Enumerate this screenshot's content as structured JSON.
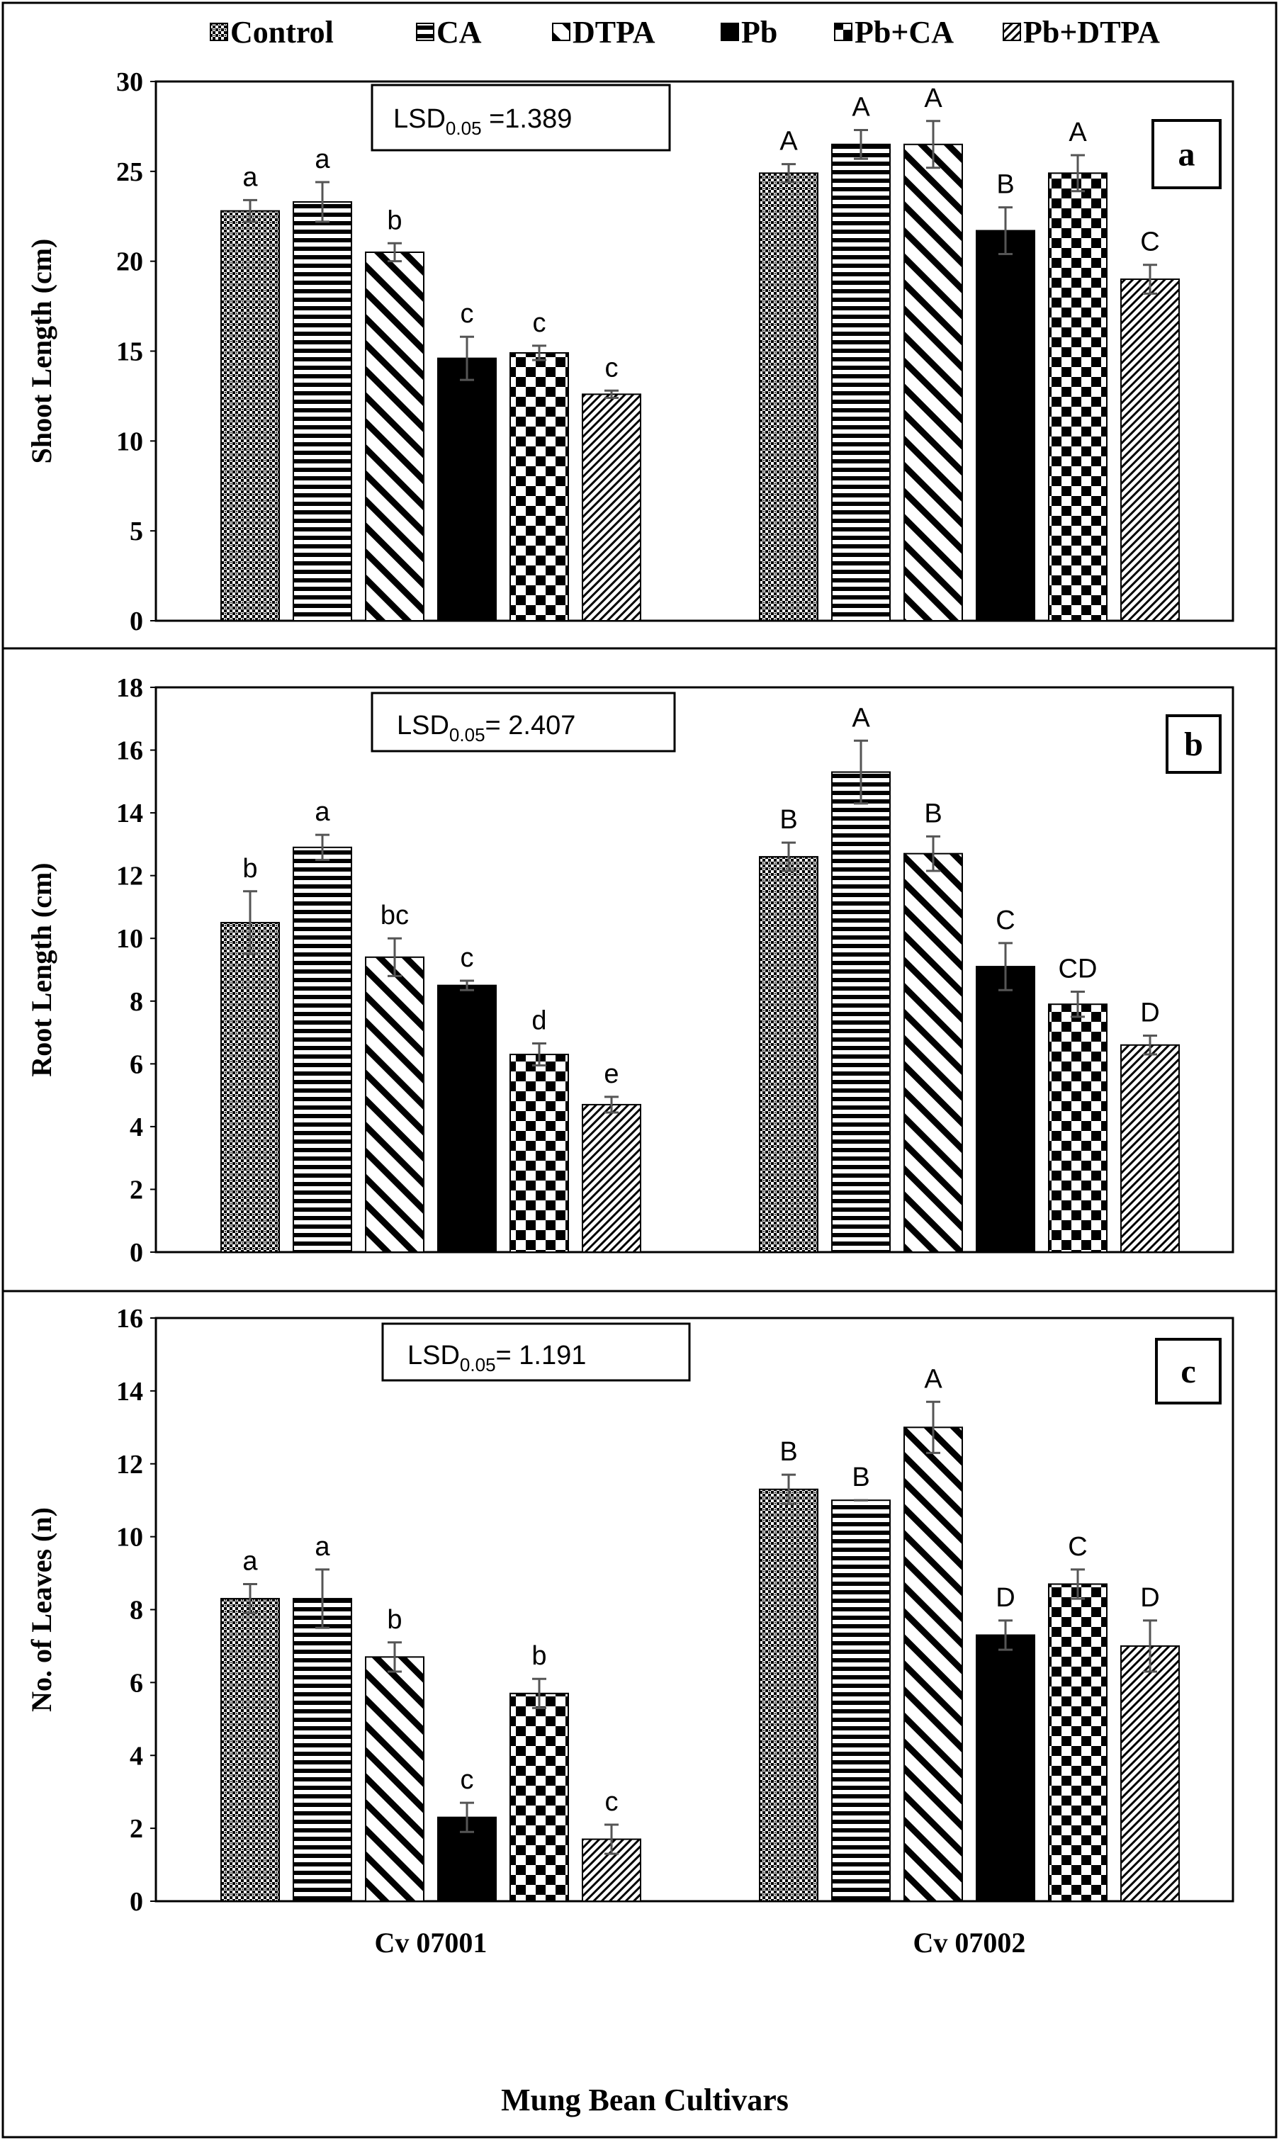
{
  "legend": [
    "Control",
    "CA",
    "DTPA",
    "Pb",
    "Pb+CA",
    "Pb+DTPA"
  ],
  "xlabel": "Mung Bean Cultivars",
  "categories": [
    "Cv 07001",
    "Cv 07002"
  ],
  "chart_data": [
    {
      "type": "bar",
      "panel": "a",
      "ylabel": "Shoot Length (cm)",
      "ylim": [
        0,
        30
      ],
      "yticks": [
        0,
        5,
        10,
        15,
        20,
        25,
        30
      ],
      "lsd": {
        "prefix": "LSD",
        "sub": "0.05",
        "text": " =1.389"
      },
      "categories": [
        "Cv 07001",
        "Cv 07002"
      ],
      "series": [
        {
          "name": "Control",
          "values": [
            22.8,
            24.9
          ],
          "errors": [
            0.6,
            0.5
          ],
          "letters": [
            "a",
            "A"
          ]
        },
        {
          "name": "CA",
          "values": [
            23.3,
            26.5
          ],
          "errors": [
            1.1,
            0.8
          ],
          "letters": [
            "a",
            "A"
          ]
        },
        {
          "name": "DTPA",
          "values": [
            20.5,
            26.5
          ],
          "errors": [
            0.5,
            1.3
          ],
          "letters": [
            "b",
            "A"
          ]
        },
        {
          "name": "Pb",
          "values": [
            14.6,
            21.7
          ],
          "errors": [
            1.2,
            1.3
          ],
          "letters": [
            "c",
            "B"
          ]
        },
        {
          "name": "Pb+CA",
          "values": [
            14.9,
            24.9
          ],
          "errors": [
            0.4,
            1.0
          ],
          "letters": [
            "c",
            "A"
          ]
        },
        {
          "name": "Pb+DTPA",
          "values": [
            12.6,
            19.0
          ],
          "errors": [
            0.2,
            0.8
          ],
          "letters": [
            "c",
            "C"
          ]
        }
      ]
    },
    {
      "type": "bar",
      "panel": "b",
      "ylabel": "Root Length (cm)",
      "ylim": [
        0,
        18
      ],
      "yticks": [
        0,
        2,
        4,
        6,
        8,
        10,
        12,
        14,
        16,
        18
      ],
      "lsd": {
        "prefix": "LSD",
        "sub": "0.05",
        "text": "= 2.407"
      },
      "categories": [
        "Cv 07001",
        "Cv 07002"
      ],
      "series": [
        {
          "name": "Control",
          "values": [
            10.5,
            12.6
          ],
          "errors": [
            1.0,
            0.45
          ],
          "letters": [
            "b",
            "B"
          ]
        },
        {
          "name": "CA",
          "values": [
            12.9,
            15.3
          ],
          "errors": [
            0.4,
            1.0
          ],
          "letters": [
            "a",
            "A"
          ]
        },
        {
          "name": "DTPA",
          "values": [
            9.4,
            12.7
          ],
          "errors": [
            0.6,
            0.55
          ],
          "letters": [
            "bc",
            "B"
          ]
        },
        {
          "name": "Pb",
          "values": [
            8.5,
            9.1
          ],
          "errors": [
            0.15,
            0.75
          ],
          "letters": [
            "c",
            "C"
          ]
        },
        {
          "name": "Pb+CA",
          "values": [
            6.3,
            7.9
          ],
          "errors": [
            0.35,
            0.4
          ],
          "letters": [
            "d",
            "CD"
          ]
        },
        {
          "name": "Pb+DTPA",
          "values": [
            4.7,
            6.6
          ],
          "errors": [
            0.25,
            0.3
          ],
          "letters": [
            "e",
            "D"
          ]
        }
      ]
    },
    {
      "type": "bar",
      "panel": "c",
      "ylabel": "No. of Leaves  (n)",
      "ylim": [
        0,
        16
      ],
      "yticks": [
        0,
        2,
        4,
        6,
        8,
        10,
        12,
        14,
        16
      ],
      "lsd": {
        "prefix": "LSD",
        "sub": "0.05",
        "text": "= 1.191"
      },
      "categories": [
        "Cv 07001",
        "Cv 07002"
      ],
      "series": [
        {
          "name": "Control",
          "values": [
            8.3,
            11.3
          ],
          "errors": [
            0.4,
            0.4
          ],
          "letters": [
            "a",
            "B"
          ]
        },
        {
          "name": "CA",
          "values": [
            8.3,
            11.0
          ],
          "errors": [
            0.8,
            0.0
          ],
          "letters": [
            "a",
            "B"
          ]
        },
        {
          "name": "DTPA",
          "values": [
            6.7,
            13.0
          ],
          "errors": [
            0.4,
            0.7
          ],
          "letters": [
            "b",
            "A"
          ]
        },
        {
          "name": "Pb",
          "values": [
            2.3,
            7.3
          ],
          "errors": [
            0.4,
            0.4
          ],
          "letters": [
            "c",
            "D"
          ]
        },
        {
          "name": "Pb+CA",
          "values": [
            5.7,
            8.7
          ],
          "errors": [
            0.4,
            0.4
          ],
          "letters": [
            "b",
            "C"
          ]
        },
        {
          "name": "Pb+DTPA",
          "values": [
            1.7,
            7.0
          ],
          "errors": [
            0.4,
            0.7
          ],
          "letters": [
            "c",
            "D"
          ]
        }
      ]
    }
  ]
}
